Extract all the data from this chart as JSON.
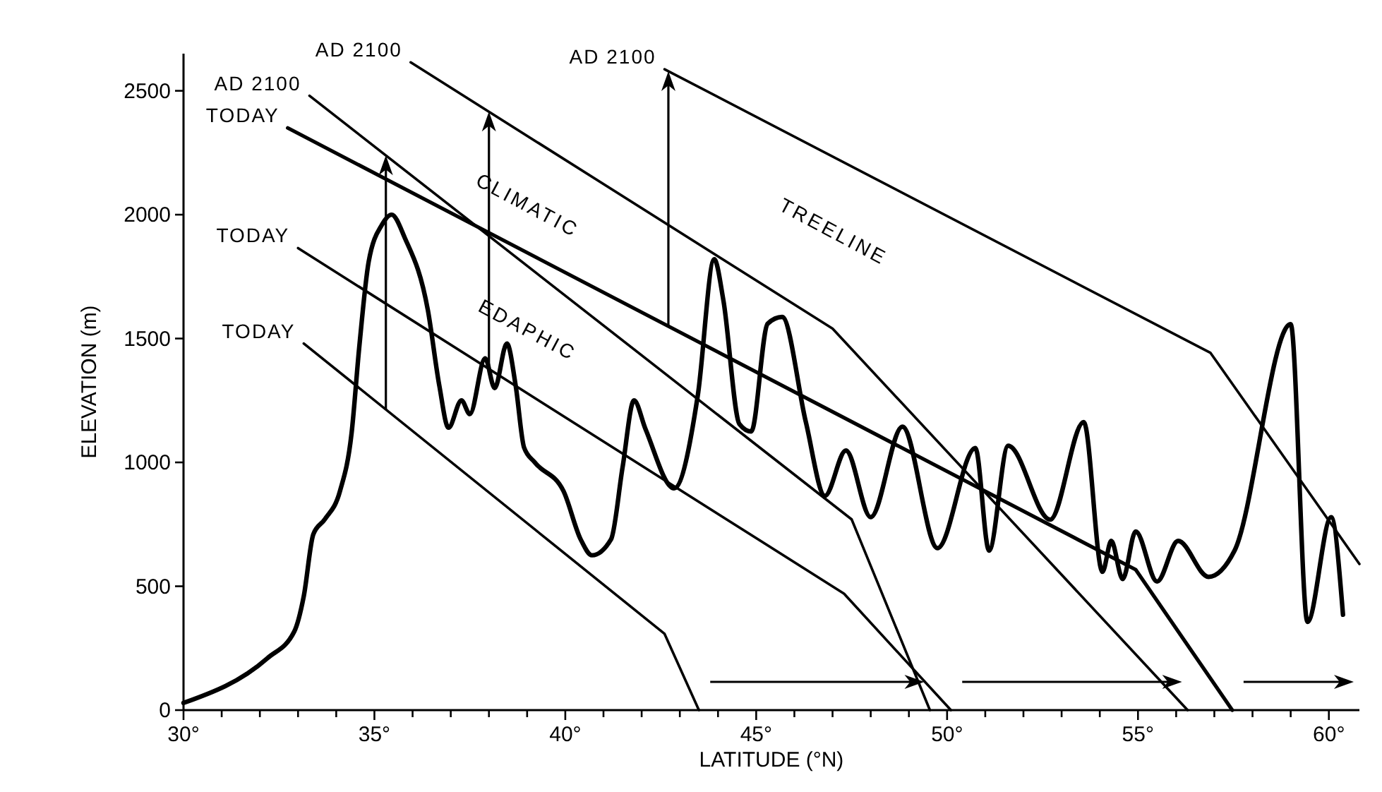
{
  "chart_data": {
    "type": "line",
    "xlabel": "LATITUDE (°N)",
    "ylabel": "ELEVATION (m)",
    "xlim": [
      30,
      60.8
    ],
    "ylim": [
      0,
      2650
    ],
    "xticks": [
      {
        "value": 30,
        "label": "30°"
      },
      {
        "value": 31,
        "label": null
      },
      {
        "value": 32,
        "label": null
      },
      {
        "value": 33,
        "label": null
      },
      {
        "value": 34,
        "label": null
      },
      {
        "value": 35,
        "label": "35°"
      },
      {
        "value": 36,
        "label": null
      },
      {
        "value": 37,
        "label": null
      },
      {
        "value": 38,
        "label": null
      },
      {
        "value": 39,
        "label": null
      },
      {
        "value": 40,
        "label": "40°"
      },
      {
        "value": 41,
        "label": null
      },
      {
        "value": 42,
        "label": null
      },
      {
        "value": 43,
        "label": null
      },
      {
        "value": 44,
        "label": null
      },
      {
        "value": 45,
        "label": "45°"
      },
      {
        "value": 46,
        "label": null
      },
      {
        "value": 47,
        "label": null
      },
      {
        "value": 48,
        "label": null
      },
      {
        "value": 49,
        "label": null
      },
      {
        "value": 50,
        "label": "50°"
      },
      {
        "value": 51,
        "label": null
      },
      {
        "value": 52,
        "label": null
      },
      {
        "value": 53,
        "label": null
      },
      {
        "value": 54,
        "label": null
      },
      {
        "value": 55,
        "label": "55°"
      },
      {
        "value": 56,
        "label": null
      },
      {
        "value": 57,
        "label": null
      },
      {
        "value": 58,
        "label": null
      },
      {
        "value": 59,
        "label": null
      },
      {
        "value": 60,
        "label": "60°"
      }
    ],
    "yticks": [
      0,
      500,
      1000,
      1500,
      2000,
      2500
    ],
    "grid": false,
    "marker": "none",
    "line_style": "solid",
    "series": [
      {
        "color": "#000000",
        "x": [
          30,
          32.2,
          32.9,
          33.15,
          33.4,
          33.7,
          34.1,
          34.4,
          34.6,
          34.85,
          35.2,
          35.45,
          35.8,
          36.4,
          36.7,
          36.94,
          37.28,
          37.5,
          37.9,
          38.15,
          38.47,
          38.7,
          38.92,
          39.2,
          39.95,
          40.4,
          40.7,
          41.2,
          41.5,
          41.8,
          42.1,
          42.85,
          43.47,
          43.9,
          44.14,
          44.56,
          44.87,
          45.3,
          45.68,
          46.3,
          46.8,
          47.35,
          48.0,
          48.83,
          49.75,
          50.74,
          51.1,
          51.6,
          52.7,
          53.58,
          54.07,
          54.3,
          54.6,
          54.94,
          55.5,
          56.05,
          56.85,
          57.53,
          59.0,
          59.44,
          60.06,
          60.37
        ],
        "values": [
          29,
          210,
          317,
          460,
          710,
          770,
          885,
          1115,
          1460,
          1810,
          1960,
          2000,
          1905,
          1615,
          1310,
          1140,
          1250,
          1195,
          1420,
          1300,
          1480,
          1310,
          1060,
          1000,
          885,
          690,
          625,
          690,
          980,
          1250,
          1135,
          895,
          1270,
          1820,
          1655,
          1155,
          1125,
          1560,
          1587,
          1163,
          865,
          1048,
          779,
          1144,
          654,
          1058,
          644,
          1067,
          769,
          1163,
          558,
          683,
          529,
          721,
          519,
          683,
          538,
          644,
          1558,
          356,
          779,
          385
        ]
      },
      {
        "color": "#000000",
        "x": [
          33.15,
          42.6,
          43.5
        ],
        "values": [
          1480,
          308,
          0
        ]
      },
      {
        "color": "#000000",
        "x": [
          33.3,
          47.5,
          49.55
        ],
        "values": [
          2480,
          770,
          0
        ]
      },
      {
        "color": "#000000",
        "x": [
          33.0,
          47.3,
          50.1
        ],
        "values": [
          1865,
          470,
          0
        ]
      },
      {
        "color": "#000000",
        "x": [
          35.95,
          47.0,
          56.3
        ],
        "values": [
          2615,
          1540,
          0
        ]
      },
      {
        "color": "#000000",
        "x": [
          32.73,
          54.94,
          57.47
        ],
        "values": [
          2350,
          567,
          0
        ]
      },
      {
        "color": "#000000",
        "x": [
          42.6,
          56.9,
          60.8
        ],
        "values": [
          2587,
          1442,
          590
        ]
      }
    ],
    "annotations": [
      {
        "text": "TODAY",
        "x": 33.15,
        "y": 1480
      },
      {
        "text": "AD 2100",
        "x": 33.3,
        "y": 2480
      },
      {
        "text": "TODAY",
        "x": 33.0,
        "y": 1865
      },
      {
        "text": "AD 2100",
        "x": 35.95,
        "y": 2615
      },
      {
        "text": "TODAY",
        "x": 32.73,
        "y": 2350
      },
      {
        "text": "AD 2100",
        "x": 42.6,
        "y": 2587
      },
      "CLIMATIC",
      "EDAPHIC",
      "TREELINE"
    ]
  }
}
